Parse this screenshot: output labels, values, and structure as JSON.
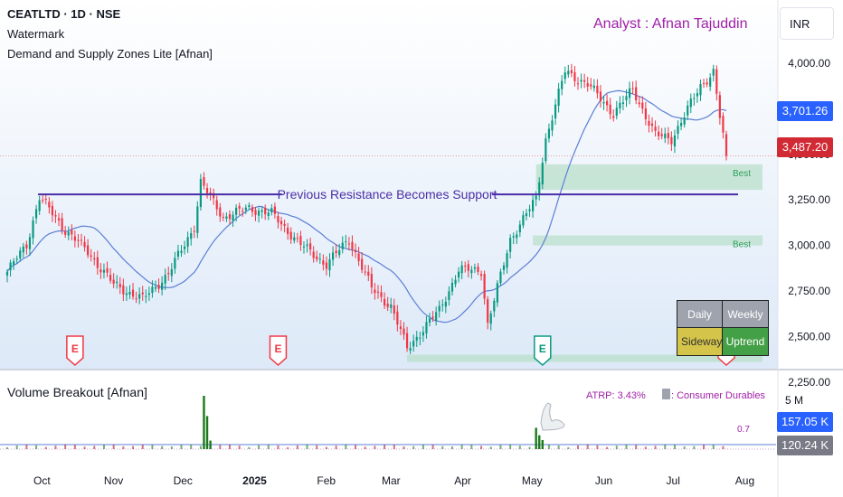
{
  "header": {
    "symbol_line": "CEATLTD · 1D · NSE",
    "indicator_1": "Watermark",
    "indicator_2": "Demand and Supply Zones Lite [Afnan]",
    "analyst": "Analyst : Afnan Tajuddin",
    "currency": "INR"
  },
  "colors": {
    "up": "#089981",
    "down": "#f23645",
    "ma": "#5b7fd6",
    "zone": "#b7dec8",
    "analyst": "#a020a8",
    "resistance": "#4a2ea6",
    "volume_up": "#1b7a1b",
    "volume_down": "#b2182b"
  },
  "chart_data": [
    {
      "type": "candlestick",
      "title": "CEATLTD · 1D · NSE",
      "y_ticks": [
        "4,000.00",
        "3,750.00",
        "3,500.00",
        "3,250.00",
        "3,000.00",
        "2,750.00",
        "2,500.00",
        "2,250.00"
      ],
      "ylim": [
        2150,
        4150
      ],
      "x_ticks": [
        "Oct",
        "Nov",
        "Dec",
        "2025",
        "Feb",
        "Mar",
        "Apr",
        "May",
        "Jun",
        "Jul",
        "Aug"
      ],
      "price_labels": {
        "moving_average": "3,701.26",
        "last_price": "3,487.20"
      },
      "annotation": "Previous Resistance Becomes Support",
      "support_level": 3275,
      "zones": [
        {
          "label": "Best",
          "low": 3300,
          "high": 3440
        },
        {
          "label": "Best",
          "low": 2995,
          "high": 3050
        },
        {
          "label": "",
          "low": 2355,
          "high": 2395
        }
      ],
      "key_prices": [
        [
          "2024-09-16",
          2850
        ],
        [
          "2024-09-24",
          3000
        ],
        [
          "2024-09-30",
          3260
        ],
        [
          "2024-10-10",
          3080
        ],
        [
          "2024-10-21",
          2960
        ],
        [
          "2024-10-31",
          2780
        ],
        [
          "2024-11-13",
          2700
        ],
        [
          "2024-11-25",
          2840
        ],
        [
          "2024-12-05",
          3100
        ],
        [
          "2024-12-09",
          3340
        ],
        [
          "2024-12-18",
          3150
        ],
        [
          "2024-12-30",
          3200
        ],
        [
          "2025-01-08",
          3170
        ],
        [
          "2025-01-21",
          3000
        ],
        [
          "2025-01-31",
          2890
        ],
        [
          "2025-02-11",
          3030
        ],
        [
          "2025-02-20",
          2760
        ],
        [
          "2025-02-28",
          2660
        ],
        [
          "2025-03-07",
          2430
        ],
        [
          "2025-03-21",
          2640
        ],
        [
          "2025-03-31",
          2860
        ],
        [
          "2025-04-09",
          2860
        ],
        [
          "2025-04-11",
          2560
        ],
        [
          "2025-04-22",
          3030
        ],
        [
          "2025-05-02",
          3250
        ],
        [
          "2025-05-07",
          3580
        ],
        [
          "2025-05-15",
          3950
        ],
        [
          "2025-05-26",
          3880
        ],
        [
          "2025-06-05",
          3720
        ],
        [
          "2025-06-13",
          3850
        ],
        [
          "2025-06-24",
          3600
        ],
        [
          "2025-07-01",
          3580
        ],
        [
          "2025-07-14",
          3870
        ],
        [
          "2025-07-18",
          3950
        ],
        [
          "2025-07-22",
          3700
        ],
        [
          "2025-07-24",
          3487.2
        ]
      ],
      "events": [
        {
          "label": "E",
          "date": "2024-10-15"
        },
        {
          "label": "E",
          "date": "2025-01-10"
        },
        {
          "label": "E",
          "date": "2025-05-06"
        },
        {
          "label": "E",
          "date": "2025-07-24"
        }
      ],
      "trend_table": {
        "headers": [
          "Daily",
          "Weekly"
        ],
        "values": [
          "Sideways",
          "Uptrend"
        ]
      }
    },
    {
      "type": "bar",
      "title": "Volume Breakout [Afnan]",
      "y_ticks": [
        "5 M"
      ],
      "value_labels": [
        "157.05 K",
        "120.24 K"
      ],
      "annotations": [
        "ATRP: 3.43%",
        ": Consumer Durables",
        "0.7"
      ],
      "spikes": [
        {
          "date": "2024-12-10",
          "volume": 5000000
        },
        {
          "date": "2024-12-11",
          "volume": 3100000
        },
        {
          "date": "2024-12-12",
          "volume": 800000
        },
        {
          "date": "2025-05-02",
          "volume": 2000000
        },
        {
          "date": "2025-05-05",
          "volume": 1300000
        },
        {
          "date": "2025-05-06",
          "volume": 850000
        }
      ]
    }
  ]
}
